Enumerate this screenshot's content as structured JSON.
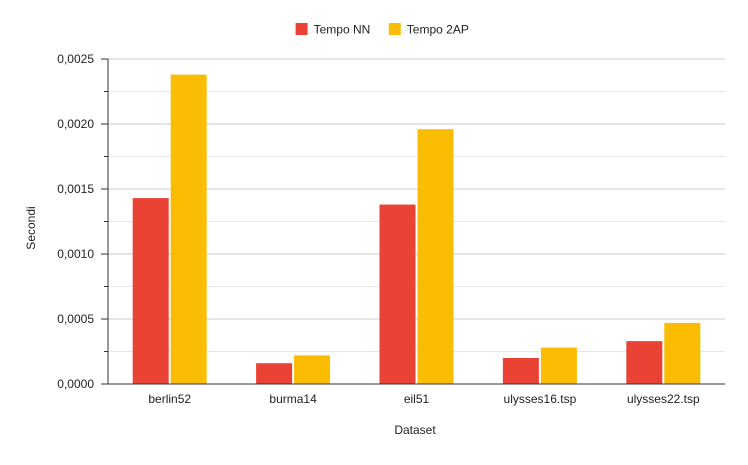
{
  "chart_data": {
    "type": "bar",
    "title": "",
    "xlabel": "Dataset",
    "ylabel": "Secondi",
    "categories": [
      "berlin52",
      "burma14",
      "eil51",
      "ulysses16.tsp",
      "ulysses22.tsp"
    ],
    "series": [
      {
        "name": "Tempo NN",
        "color": "#ea4335",
        "values": [
          0.00143,
          0.00016,
          0.00138,
          0.0002,
          0.00033
        ]
      },
      {
        "name": "Tempo 2AP",
        "color": "#fbbc04",
        "values": [
          0.00238,
          0.00022,
          0.00196,
          0.00028,
          0.00047
        ]
      }
    ],
    "ylim": [
      0,
      0.0025
    ],
    "yticks": [
      "0,0000",
      "0,0005",
      "0,0010",
      "0,0015",
      "0,0020",
      "0,0025"
    ],
    "grid": true,
    "legend_position": "top"
  }
}
